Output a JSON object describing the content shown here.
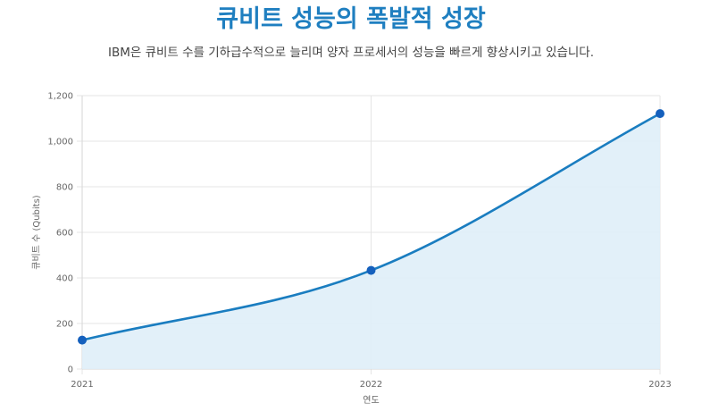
{
  "header": {
    "title": "큐비트 성능의 폭발적 성장",
    "subtitle": "IBM은 큐비트 수를 기하급수적으로 늘리며 양자 프로세서의 성능을 빠르게 향상시키고 있습니다."
  },
  "colors": {
    "title": "#1f7fc0",
    "line": "#1a7dc0",
    "fill": "#dfeef8",
    "point": "#1560bd",
    "grid": "#e5e5e5"
  },
  "chart_data": {
    "type": "area",
    "x": [
      "2021",
      "2022",
      "2023"
    ],
    "values": [
      127,
      433,
      1121
    ],
    "xlabel": "연도",
    "ylabel": "큐비트 수 (Qubits)",
    "ylim": [
      0,
      1200
    ],
    "yticks": [
      "0",
      "200",
      "400",
      "600",
      "800",
      "1,000",
      "1,200"
    ],
    "grid": true,
    "legend": "none"
  }
}
